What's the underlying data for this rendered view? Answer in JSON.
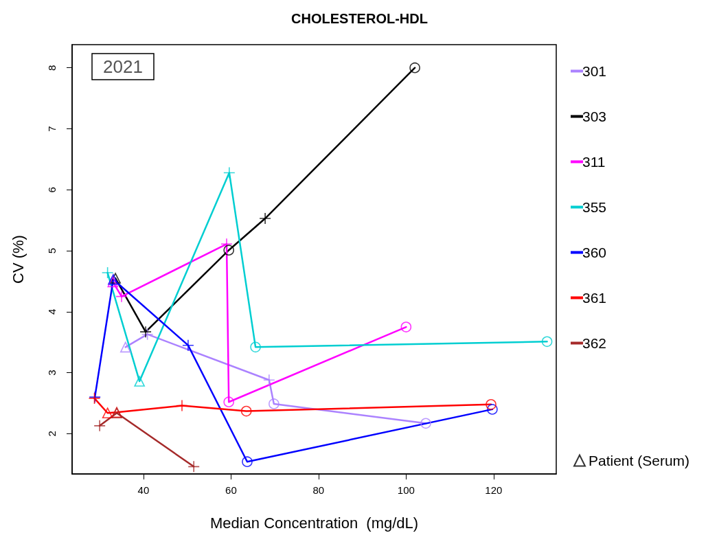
{
  "chart_data": {
    "type": "line",
    "title": "CHOLESTEROL-HDL",
    "xlabel": "Median Concentration  (mg/dL)",
    "ylabel": "CV (%)",
    "annotations": [
      "2021"
    ],
    "xlim": [
      23.7,
      134.3
    ],
    "xticks": [
      40,
      60,
      80,
      100,
      120
    ],
    "ylim": [
      1.34,
      8.38
    ],
    "yticks": [
      2,
      3,
      4,
      5,
      6,
      7,
      8
    ],
    "grid": false,
    "legend": "right",
    "line_style": "solid",
    "marker": "none",
    "series": [
      {
        "name": "301",
        "color": "#ab82ff",
        "x": [
          35.9,
          40.9,
          68.7,
          69.8,
          104.5
        ],
        "values": [
          3.42,
          3.63,
          2.88,
          2.49,
          2.17
        ]
      },
      {
        "name": "303",
        "color": "#000000",
        "x": [
          33.6,
          40.5,
          59.5,
          67.8,
          102
        ],
        "values": [
          4.55,
          3.67,
          5.01,
          5.53,
          8.0
        ]
      },
      {
        "name": "311",
        "color": "#ff00ff",
        "x": [
          33.0,
          35.0,
          59.0,
          59.5,
          100
        ],
        "values": [
          4.49,
          4.25,
          5.11,
          2.52,
          3.75
        ]
      },
      {
        "name": "355",
        "color": "#00ced1",
        "x": [
          31.8,
          39.1,
          59.6,
          65.6,
          132.2
        ],
        "values": [
          4.64,
          2.86,
          6.28,
          3.42,
          3.51
        ]
      },
      {
        "name": "360",
        "color": "#0000ff",
        "x": [
          28.9,
          33.1,
          50.2,
          63.7,
          119.7
        ],
        "values": [
          2.6,
          4.53,
          3.45,
          1.54,
          2.4
        ]
      },
      {
        "name": "361",
        "color": "#ff0000",
        "x": [
          28.8,
          31.8,
          33.9,
          48.8,
          63.5,
          119.4
        ],
        "values": [
          2.58,
          2.34,
          2.35,
          2.46,
          2.37,
          2.48
        ]
      },
      {
        "name": "362",
        "color": "#a52a2a",
        "x": [
          30.0,
          33.9,
          51.5
        ],
        "values": [
          2.13,
          2.34,
          1.46
        ]
      },
      {
        "type": "scatter",
        "marker": "cross",
        "x": [
          40.9,
          68.7,
          40.5,
          67.8,
          35.0,
          59.0,
          31.8,
          59.6,
          28.9,
          50.2,
          28.8,
          48.8,
          30.0,
          51.5
        ],
        "values": [
          3.63,
          2.88,
          3.67,
          5.53,
          4.25,
          5.11,
          4.64,
          6.28,
          2.6,
          3.45,
          2.58,
          2.46,
          2.13,
          1.46
        ],
        "colors": [
          "#ab82ff",
          "#ab82ff",
          "#000000",
          "#000000",
          "#ff00ff",
          "#ff00ff",
          "#00ced1",
          "#00ced1",
          "#0000ff",
          "#0000ff",
          "#ff0000",
          "#ff0000",
          "#a52a2a",
          "#a52a2a"
        ]
      },
      {
        "type": "scatter",
        "marker": "triangle",
        "name": "Patient (Serum)",
        "color": "#000000",
        "x": [
          35.9,
          33.6,
          33.0,
          39.1,
          33.1,
          31.8,
          33.9,
          33.9
        ],
        "values": [
          3.42,
          4.55,
          4.49,
          2.86,
          4.53,
          2.34,
          2.35,
          2.34
        ],
        "colors": [
          "#ab82ff",
          "#000000",
          "#ff00ff",
          "#00ced1",
          "#0000ff",
          "#ff0000",
          "#ff0000",
          "#a52a2a"
        ]
      },
      {
        "type": "scatter",
        "marker": "circle",
        "x": [
          69.8,
          104.5,
          59.5,
          102,
          59.5,
          100,
          65.6,
          132.2,
          63.7,
          119.7,
          63.5,
          119.4
        ],
        "values": [
          2.49,
          2.17,
          5.01,
          8.0,
          2.52,
          3.75,
          3.42,
          3.51,
          1.54,
          2.4,
          2.37,
          2.48
        ],
        "colors": [
          "#ab82ff",
          "#ab82ff",
          "#000000",
          "#000000",
          "#ff00ff",
          "#ff00ff",
          "#00ced1",
          "#00ced1",
          "#0000ff",
          "#0000ff",
          "#ff0000",
          "#ff0000"
        ]
      }
    ]
  }
}
